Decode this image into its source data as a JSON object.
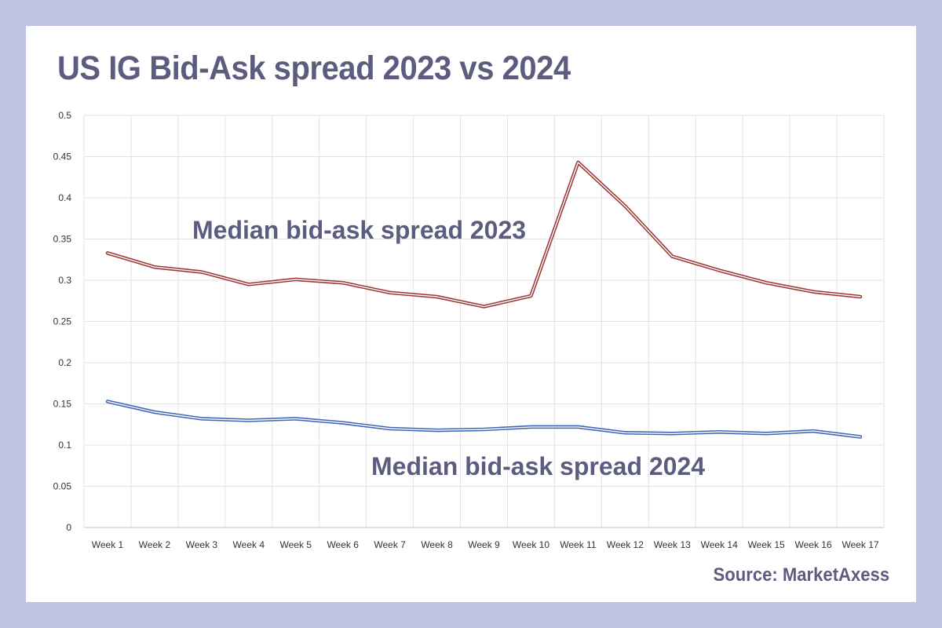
{
  "title": "US IG Bid-Ask spread 2023 vs 2024",
  "source": "Source: MarketAxess",
  "colors": {
    "background": "#bcc3e3",
    "text": "#5c5d7e",
    "series_2023": "#9b3a36",
    "series_2024": "#4266b8",
    "grid": "#e3e3e3"
  },
  "chart_data": {
    "type": "line",
    "title": "",
    "xlabel": "",
    "ylabel": "",
    "categories": [
      "Week 1",
      "Week 2",
      "Week 3",
      "Week 4",
      "Week 5",
      "Week 6",
      "Week 7",
      "Week 8",
      "Week 9",
      "Week 10",
      "Week 11",
      "Week 12",
      "Week 13",
      "Week 14",
      "Week 15",
      "Week 16",
      "Week 17"
    ],
    "ylim": [
      0,
      0.5
    ],
    "yticks": [
      "0",
      "0.05",
      "0.1",
      "0.15",
      "0.2",
      "0.25",
      "0.3",
      "0.35",
      "0.4",
      "0.45",
      "0.5"
    ],
    "grid": true,
    "legend": "none",
    "series": [
      {
        "name": "Median bid-ask spread 2023",
        "values": [
          0.333,
          0.316,
          0.31,
          0.295,
          0.301,
          0.297,
          0.285,
          0.28,
          0.268,
          0.281,
          0.443,
          0.39,
          0.329,
          0.312,
          0.297,
          0.286,
          0.28
        ]
      },
      {
        "name": "Median bid-ask spread 2024",
        "values": [
          0.153,
          0.14,
          0.132,
          0.13,
          0.132,
          0.127,
          0.12,
          0.118,
          0.119,
          0.122,
          0.122,
          0.115,
          0.114,
          0.116,
          0.114,
          0.117,
          0.11
        ]
      }
    ]
  }
}
